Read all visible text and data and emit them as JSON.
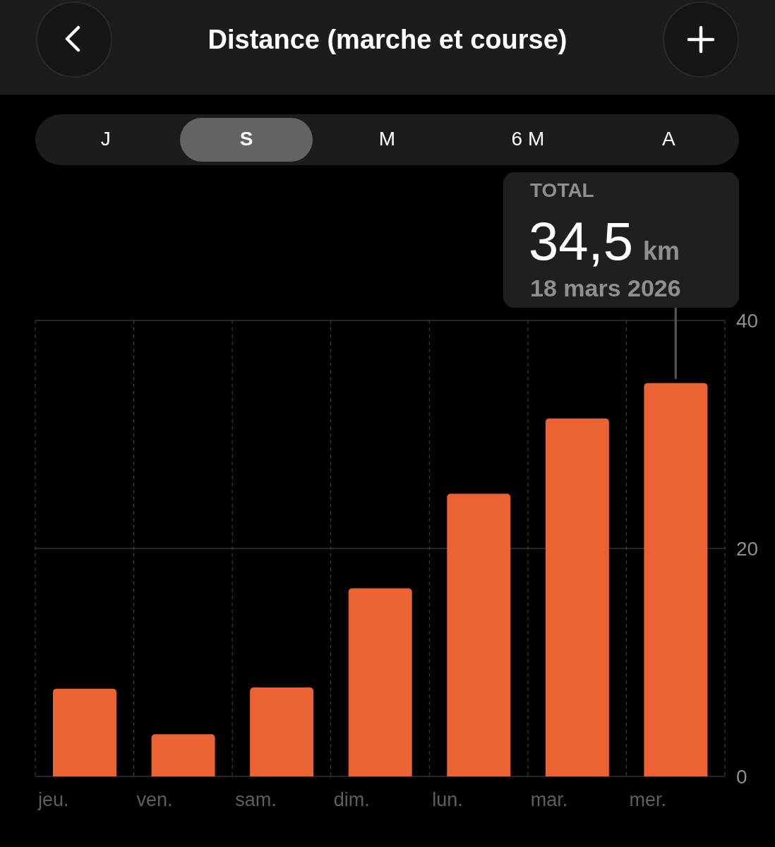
{
  "chart_data": {
    "type": "bar",
    "title": "Distance (marche et course)",
    "categories": [
      "jeu.",
      "ven.",
      "sam.",
      "dim.",
      "lun.",
      "mar.",
      "mer."
    ],
    "values": [
      7.7,
      3.7,
      7.8,
      16.5,
      24.8,
      31.4,
      34.5
    ],
    "color": "#eb6333",
    "ylim": [
      0,
      40
    ],
    "yticks": [
      0,
      20,
      40
    ],
    "grid": true,
    "annotations": [
      "J",
      "S",
      "M",
      "6 M",
      "A",
      {
        "text": "TOTAL\n34,5 km\n18 mars 2026",
        "x": "mer.",
        "y": 34.5
      }
    ]
  }
}
